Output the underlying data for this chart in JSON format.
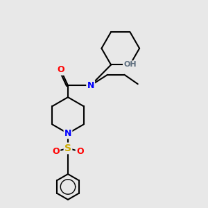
{
  "bg_color": "#e8e8e8",
  "atom_colors": {
    "C": "#000000",
    "N": "#0000ff",
    "O": "#ff0000",
    "S": "#ccaa00",
    "H": "#607080"
  },
  "bond_color": "#000000",
  "bond_width": 1.5,
  "figsize": [
    3.0,
    3.0
  ],
  "dpi": 100
}
